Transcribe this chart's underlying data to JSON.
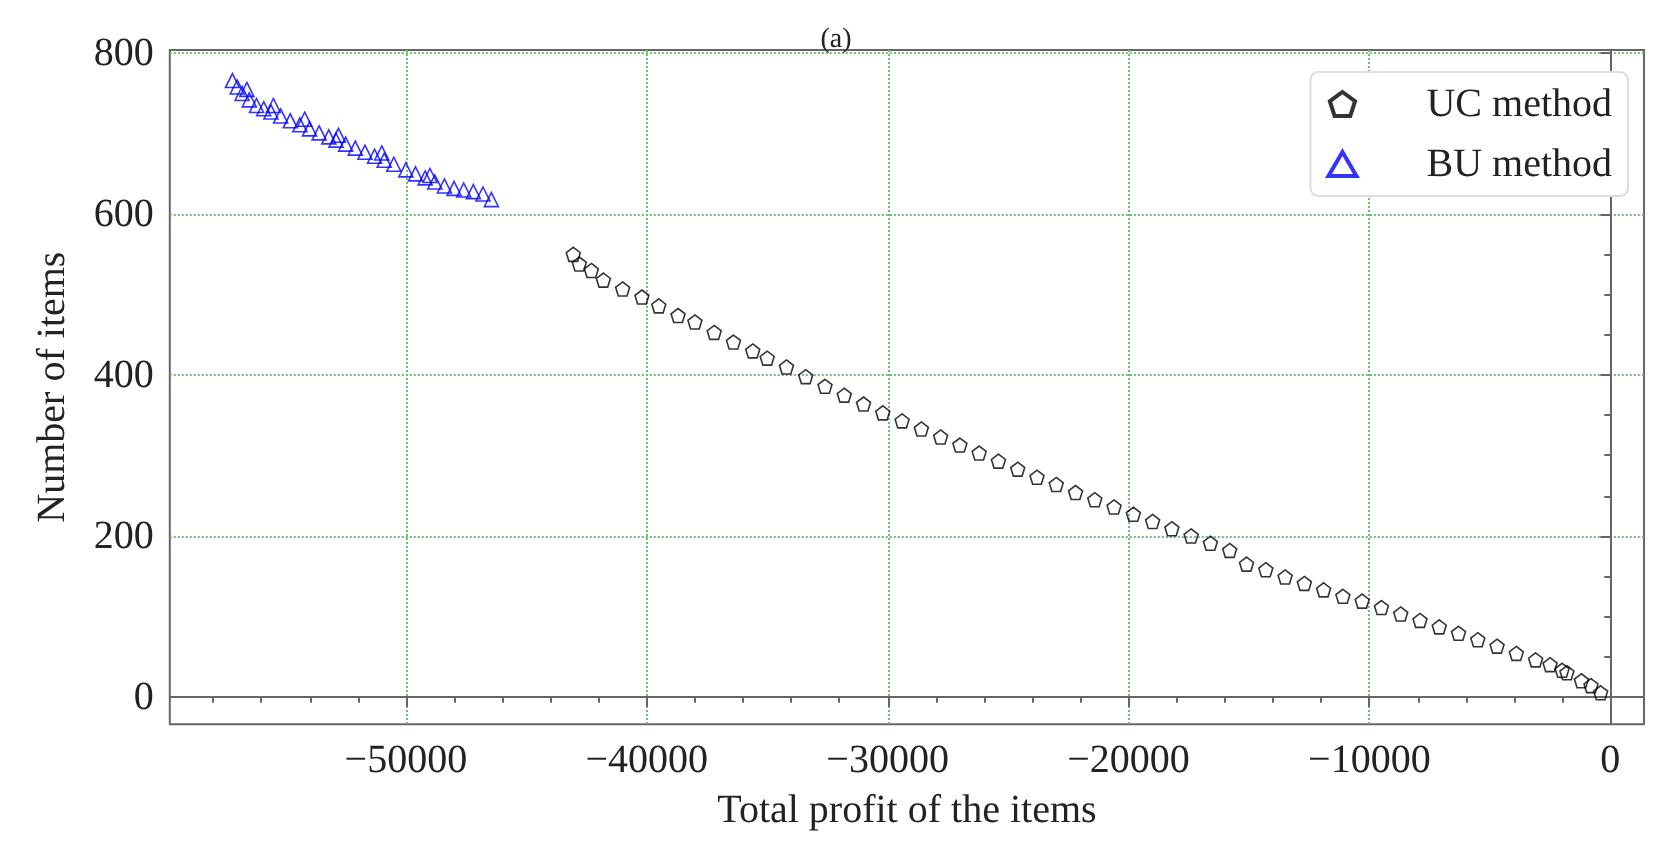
{
  "chart_data": {
    "type": "scatter",
    "title": "(a)",
    "xlabel": "Total profit of the items",
    "ylabel": "Number of items",
    "xlim": [
      -59800,
      1400
    ],
    "ylim": [
      -34,
      804
    ],
    "xticks": [
      {
        "value": -50000,
        "label": "−50000"
      },
      {
        "value": -40000,
        "label": "−40000"
      },
      {
        "value": -30000,
        "label": "−30000"
      },
      {
        "value": -20000,
        "label": "−20000"
      },
      {
        "value": -10000,
        "label": "−10000"
      },
      0
    ],
    "yticks": [
      0,
      200,
      400,
      600,
      800
    ],
    "grid": true,
    "legend": "top right",
    "series": [
      {
        "name": "UC method",
        "color": "#000000",
        "x": [
          -43050,
          -42800,
          -42300,
          -41800,
          -41000,
          -40200,
          -39500,
          -38700,
          -38000,
          -37200,
          -36400,
          -35600,
          -35000,
          -34200,
          -33400,
          -32600,
          -31800,
          -31000,
          -30200,
          -29400,
          -28600,
          -27800,
          -27000,
          -26200,
          -25400,
          -24600,
          -23800,
          -23000,
          -22200,
          -21400,
          -20600,
          -19800,
          -19000,
          -18200,
          -17400,
          -16600,
          -15800,
          -15100,
          -14300,
          -13500,
          -12700,
          -11900,
          -11100,
          -10300,
          -9500,
          -8700,
          -7900,
          -7100,
          -6300,
          -5500,
          -4700,
          -3900,
          -3100,
          -2500,
          -2000,
          -1800,
          -1200,
          -800,
          -400
        ],
        "values": [
          550,
          538,
          530,
          518,
          507,
          497,
          486,
          474,
          466,
          453,
          441,
          430,
          421,
          410,
          398,
          386,
          375,
          364,
          353,
          343,
          333,
          323,
          313,
          303,
          293,
          283,
          273,
          264,
          254,
          245,
          236,
          227,
          218,
          209,
          200,
          191,
          182,
          165,
          158,
          149,
          141,
          133,
          125,
          119,
          111,
          103,
          95,
          87,
          79,
          71,
          63,
          54,
          46,
          40,
          33,
          30,
          20,
          14,
          5
        ]
      },
      {
        "name": "BU method",
        "color": "#0000ff",
        "marker": "triangle",
        "x": [
          -57200,
          -57000,
          -56800,
          -56500,
          -56200,
          -55900,
          -55600,
          -55200,
          -54800,
          -54400,
          -54000,
          -53600,
          -53200,
          -52900,
          -52500,
          -52100,
          -51700,
          -51300,
          -50900,
          -50500,
          -50000,
          -49600,
          -49200,
          -48800,
          -48400,
          -48000,
          -47600,
          -47200,
          -46800,
          -46450,
          -56600,
          -55500,
          -54200,
          -52800,
          -51000,
          -49000
        ],
        "values": [
          766,
          758,
          750,
          742,
          735,
          731,
          727,
          722,
          716,
          711,
          706,
          701,
          696,
          692,
          687,
          682,
          677,
          672,
          667,
          662,
          655,
          650,
          645,
          640,
          635,
          632,
          630,
          628,
          625,
          618,
          755,
          735,
          718,
          698,
          676,
          648
        ]
      }
    ]
  }
}
